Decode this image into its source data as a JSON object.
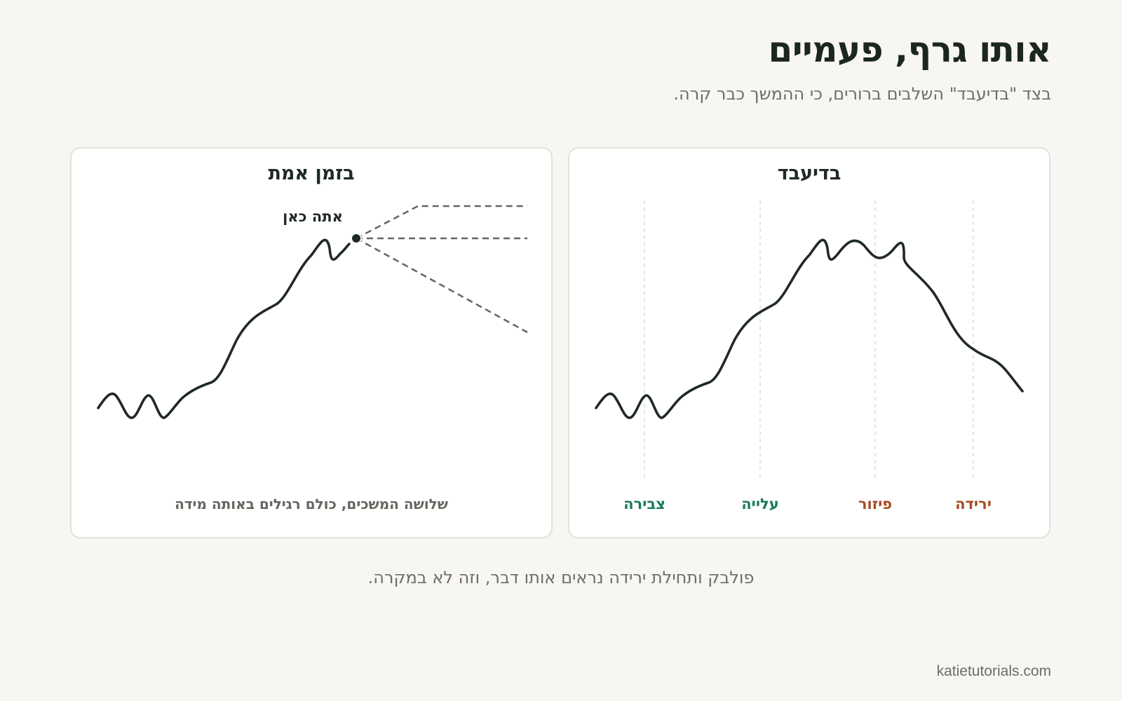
{
  "title": "אותו גרף, פעמיים",
  "subtitle": "בצד \"בדיעבד\" השלבים ברורים, כי ההמשך כבר קרה.",
  "hindsight_panel": {
    "title": "בדיעבד",
    "phases": [
      {
        "label": "צבירה",
        "color": "#1a7a5c"
      },
      {
        "label": "עלייה",
        "color": "#1a7a5c"
      },
      {
        "label": "פיזור",
        "color": "#a64a22"
      },
      {
        "label": "ירידה",
        "color": "#a64a22"
      }
    ]
  },
  "realtime_panel": {
    "title": "בזמן אמת",
    "marker_label": "אתה כאן",
    "caption": "שלושה המשכים, כולם רגילים באותה מידה"
  },
  "footer_note": "פולבק ותחילת ירידה נראים אותו דבר, וזה לא במקרה.",
  "credit": "katietutorials.com",
  "colors": {
    "background": "#f7f6f2",
    "line": "#1f2a24",
    "dashed": "#67645d",
    "accumulation": "#1a7a5c",
    "distribution": "#a64a22"
  }
}
